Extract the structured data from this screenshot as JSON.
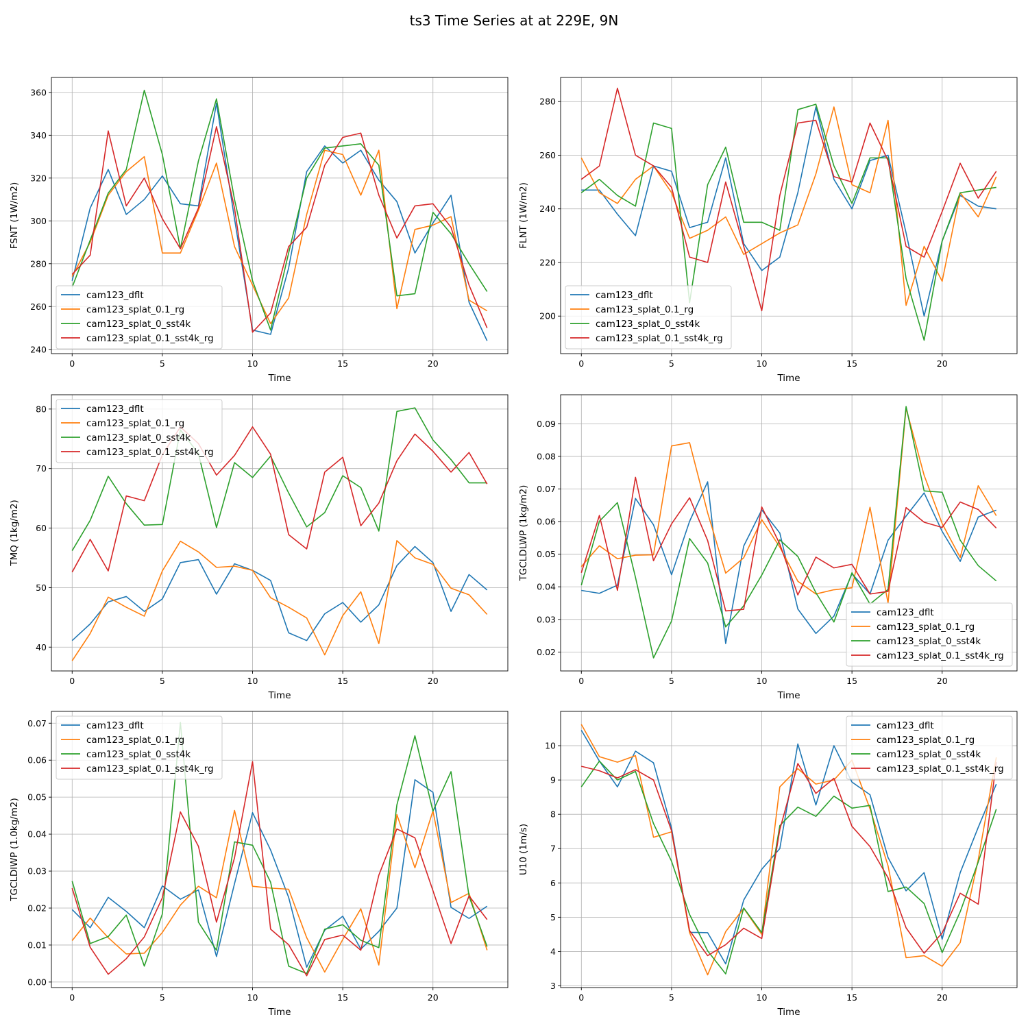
{
  "figure": {
    "title": "ts3 Time Series at at 229E, 9N"
  },
  "series_colors": [
    "#1f77b4",
    "#ff7f0e",
    "#2ca02c",
    "#d62728"
  ],
  "chart_data": [
    {
      "type": "line",
      "title": "",
      "xlabel": "Time",
      "ylabel": "FSNT (1W/m2)",
      "xlim": [
        -1.15,
        24.15
      ],
      "ylim": [
        238,
        367
      ],
      "xticks": [
        0,
        5,
        10,
        15,
        20
      ],
      "xtick_labels": [
        "0",
        "5",
        "10",
        "15",
        "20"
      ],
      "yticks": [
        240,
        260,
        280,
        300,
        320,
        340,
        360
      ],
      "ytick_labels": [
        "240",
        "260",
        "280",
        "300",
        "320",
        "340",
        "360"
      ],
      "legend_position": "lower-left",
      "x": [
        0,
        1,
        2,
        3,
        4,
        5,
        6,
        7,
        8,
        9,
        10,
        11,
        12,
        13,
        14,
        15,
        16,
        17,
        18,
        19,
        20,
        21,
        22,
        23
      ],
      "series": [
        {
          "name": "cam123_dflt",
          "values": [
            272,
            306,
            324,
            303,
            310,
            321,
            308,
            307,
            355,
            301,
            249,
            247,
            278,
            323,
            335,
            327,
            333,
            319,
            309,
            285,
            299,
            312,
            262,
            244
          ]
        },
        {
          "name": "cam123_splat_0.1_rg",
          "values": [
            274,
            290,
            312,
            323,
            330,
            285,
            285,
            305,
            327,
            288,
            270,
            252,
            264,
            303,
            333,
            331,
            312,
            333,
            259,
            296,
            298,
            302,
            263,
            258
          ]
        },
        {
          "name": "cam123_splat_0_sst4k",
          "values": [
            269,
            291,
            313,
            324,
            361,
            331,
            287,
            328,
            357,
            310,
            272,
            249,
            285,
            320,
            334,
            335,
            336,
            326,
            265,
            266,
            304,
            294,
            280,
            267
          ]
        },
        {
          "name": "cam123_splat_0.1_sst4k_rg",
          "values": [
            275,
            284,
            342,
            307,
            320,
            301,
            287,
            306,
            344,
            306,
            248,
            257,
            288,
            297,
            326,
            339,
            341,
            312,
            292,
            307,
            308,
            297,
            270,
            250
          ]
        }
      ]
    },
    {
      "type": "line",
      "title": "",
      "xlabel": "Time",
      "ylabel": "FLNT (1W/m2)",
      "xlim": [
        -1.15,
        24.15
      ],
      "ylim": [
        186,
        289
      ],
      "xticks": [
        0,
        5,
        10,
        15,
        20
      ],
      "xtick_labels": [
        "0",
        "5",
        "10",
        "15",
        "20"
      ],
      "yticks": [
        200,
        220,
        240,
        260,
        280
      ],
      "ytick_labels": [
        "200",
        "220",
        "240",
        "260",
        "280"
      ],
      "legend_position": "lower-left",
      "x": [
        0,
        1,
        2,
        3,
        4,
        5,
        6,
        7,
        8,
        9,
        10,
        11,
        12,
        13,
        14,
        15,
        16,
        17,
        18,
        19,
        20,
        21,
        22,
        23
      ],
      "series": [
        {
          "name": "cam123_dflt",
          "values": [
            247,
            247,
            238,
            230,
            256,
            254,
            233,
            235,
            259,
            227,
            217,
            222,
            246,
            278,
            251,
            240,
            258,
            260,
            231,
            200,
            228,
            245,
            241,
            240
          ]
        },
        {
          "name": "cam123_splat_0.1_rg",
          "values": [
            259,
            246,
            242,
            251,
            256,
            246,
            229,
            232,
            237,
            223,
            227,
            231,
            234,
            253,
            278,
            249,
            246,
            273,
            204,
            226,
            213,
            246,
            237,
            252
          ]
        },
        {
          "name": "cam123_splat_0_sst4k",
          "values": [
            246,
            251,
            245,
            241,
            272,
            270,
            205,
            249,
            263,
            235,
            235,
            232,
            277,
            279,
            256,
            242,
            259,
            259,
            214,
            191,
            228,
            246,
            247,
            248
          ]
        },
        {
          "name": "cam123_splat_0.1_sst4k_rg",
          "values": [
            251,
            256,
            285,
            260,
            256,
            248,
            222,
            220,
            250,
            226,
            202,
            245,
            272,
            273,
            252,
            250,
            272,
            258,
            226,
            222,
            239,
            257,
            244,
            254
          ]
        }
      ]
    },
    {
      "type": "line",
      "title": "",
      "xlabel": "Time",
      "ylabel": "TMQ (1kg/m2)",
      "xlim": [
        -1.15,
        24.15
      ],
      "ylim": [
        36,
        82.4
      ],
      "xticks": [
        0,
        5,
        10,
        15,
        20
      ],
      "xtick_labels": [
        "0",
        "5",
        "10",
        "15",
        "20"
      ],
      "yticks": [
        40,
        50,
        60,
        70,
        80
      ],
      "ytick_labels": [
        "40",
        "50",
        "60",
        "70",
        "80"
      ],
      "legend_position": "upper-left",
      "x": [
        0,
        1,
        2,
        3,
        4,
        5,
        6,
        7,
        8,
        9,
        10,
        11,
        12,
        13,
        14,
        15,
        16,
        17,
        18,
        19,
        20,
        21,
        22,
        23
      ],
      "series": [
        {
          "name": "cam123_dflt",
          "values": [
            41.1,
            43.9,
            47.6,
            48.5,
            46.0,
            48.1,
            54.2,
            54.7,
            48.9,
            54.0,
            52.9,
            51.2,
            42.4,
            41.1,
            45.6,
            47.5,
            44.2,
            47.1,
            53.7,
            56.9,
            54.2,
            46.0,
            52.2,
            49.6
          ]
        },
        {
          "name": "cam123_splat_0.1_rg",
          "values": [
            37.7,
            42.3,
            48.4,
            46.7,
            45.2,
            52.8,
            57.8,
            56.0,
            53.4,
            53.6,
            52.9,
            48.3,
            46.7,
            44.9,
            38.7,
            45.3,
            49.3,
            40.6,
            57.9,
            55.0,
            53.9,
            49.9,
            48.8,
            45.5
          ]
        },
        {
          "name": "cam123_splat_0_sst4k",
          "values": [
            56.2,
            61.3,
            68.7,
            64.1,
            60.5,
            60.6,
            76.5,
            72.5,
            60.1,
            71.0,
            68.5,
            72.1,
            65.9,
            60.2,
            62.6,
            68.8,
            66.8,
            59.5,
            79.6,
            80.2,
            74.8,
            71.5,
            67.6,
            67.6
          ]
        },
        {
          "name": "cam123_splat_0.1_sst4k_rg",
          "values": [
            52.6,
            58.1,
            52.8,
            65.4,
            64.6,
            72.3,
            77.0,
            74.2,
            68.9,
            72.2,
            77.0,
            72.4,
            58.9,
            56.5,
            69.4,
            71.9,
            60.4,
            64.2,
            71.3,
            75.8,
            72.9,
            69.4,
            72.7,
            67.4
          ]
        }
      ]
    },
    {
      "type": "line",
      "title": "",
      "xlabel": "Time",
      "ylabel": "TGCLDLWP (1kg/m2)",
      "xlim": [
        -1.15,
        24.15
      ],
      "ylim": [
        0.0142,
        0.0989
      ],
      "xticks": [
        0,
        5,
        10,
        15,
        20
      ],
      "xtick_labels": [
        "0",
        "5",
        "10",
        "15",
        "20"
      ],
      "yticks": [
        0.02,
        0.03,
        0.04,
        0.05,
        0.06,
        0.07,
        0.08,
        0.09
      ],
      "ytick_labels": [
        "0.02",
        "0.03",
        "0.04",
        "0.05",
        "0.06",
        "0.07",
        "0.08",
        "0.09"
      ],
      "legend_position": "lower-right",
      "x": [
        0,
        1,
        2,
        3,
        4,
        5,
        6,
        7,
        8,
        9,
        10,
        11,
        12,
        13,
        14,
        15,
        16,
        17,
        18,
        19,
        20,
        21,
        22,
        23
      ],
      "series": [
        {
          "name": "cam123_dflt",
          "values": [
            0.0389,
            0.038,
            0.0405,
            0.0671,
            0.059,
            0.0437,
            0.0601,
            0.0722,
            0.0226,
            0.0525,
            0.0636,
            0.0565,
            0.0332,
            0.0257,
            0.031,
            0.044,
            0.0378,
            0.0543,
            0.0617,
            0.0688,
            0.057,
            0.0478,
            0.0614,
            0.0635
          ]
        },
        {
          "name": "cam123_splat_0.1_rg",
          "values": [
            0.0462,
            0.0526,
            0.0486,
            0.0497,
            0.0498,
            0.0832,
            0.0842,
            0.0627,
            0.0442,
            0.0489,
            0.0606,
            0.0522,
            0.0417,
            0.0378,
            0.0391,
            0.0397,
            0.0644,
            0.035,
            0.0948,
            0.0742,
            0.0594,
            0.049,
            0.071,
            0.0618
          ]
        },
        {
          "name": "cam123_splat_0_sst4k",
          "values": [
            0.0405,
            0.0601,
            0.0658,
            0.0429,
            0.0182,
            0.0295,
            0.0548,
            0.0473,
            0.0277,
            0.0342,
            0.0436,
            0.0544,
            0.0493,
            0.0382,
            0.0292,
            0.0443,
            0.0347,
            0.0392,
            0.0953,
            0.0694,
            0.069,
            0.0543,
            0.0465,
            0.0418
          ]
        },
        {
          "name": "cam123_splat_0.1_sst4k_rg",
          "values": [
            0.0443,
            0.0619,
            0.0389,
            0.0736,
            0.048,
            0.0593,
            0.0673,
            0.0542,
            0.0326,
            0.0331,
            0.0645,
            0.0531,
            0.0375,
            0.0491,
            0.0458,
            0.0469,
            0.0378,
            0.0386,
            0.0643,
            0.0598,
            0.0582,
            0.066,
            0.0637,
            0.058
          ]
        }
      ]
    },
    {
      "type": "line",
      "title": "",
      "xlabel": "Time",
      "ylabel": "TGCLDIWP (1.0kg/m2)",
      "xlim": [
        -1.15,
        24.15
      ],
      "ylim": [
        -0.0015,
        0.0732
      ],
      "xticks": [
        0,
        5,
        10,
        15,
        20
      ],
      "xtick_labels": [
        "0",
        "5",
        "10",
        "15",
        "20"
      ],
      "yticks": [
        0.0,
        0.01,
        0.02,
        0.03,
        0.04,
        0.05,
        0.06,
        0.07
      ],
      "ytick_labels": [
        "0.00",
        "0.01",
        "0.02",
        "0.03",
        "0.04",
        "0.05",
        "0.06",
        "0.07"
      ],
      "legend_position": "upper-left",
      "x": [
        0,
        1,
        2,
        3,
        4,
        5,
        6,
        7,
        8,
        9,
        10,
        11,
        12,
        13,
        14,
        15,
        16,
        17,
        18,
        19,
        20,
        21,
        22,
        23
      ],
      "series": [
        {
          "name": "cam123_dflt",
          "values": [
            0.0196,
            0.0147,
            0.0229,
            0.0191,
            0.0147,
            0.026,
            0.0224,
            0.0249,
            0.0069,
            0.0266,
            0.0458,
            0.0357,
            0.0229,
            0.004,
            0.014,
            0.0178,
            0.0089,
            0.0137,
            0.02,
            0.0547,
            0.0513,
            0.0202,
            0.0172,
            0.0205
          ]
        },
        {
          "name": "cam123_splat_0.1_rg",
          "values": [
            0.0112,
            0.0173,
            0.012,
            0.0076,
            0.0078,
            0.0134,
            0.0208,
            0.0259,
            0.0228,
            0.0464,
            0.0259,
            0.0254,
            0.0251,
            0.012,
            0.0027,
            0.0115,
            0.0198,
            0.0046,
            0.0453,
            0.0309,
            0.0463,
            0.0215,
            0.024,
            0.0086
          ]
        },
        {
          "name": "cam123_splat_0_sst4k",
          "values": [
            0.0273,
            0.0104,
            0.0123,
            0.0181,
            0.0043,
            0.0184,
            0.0702,
            0.0162,
            0.0086,
            0.0379,
            0.037,
            0.027,
            0.0043,
            0.0023,
            0.0143,
            0.0155,
            0.0113,
            0.0093,
            0.0479,
            0.0666,
            0.0462,
            0.0569,
            0.0232,
            0.0096
          ]
        },
        {
          "name": "cam123_splat_0.1_sst4k_rg",
          "values": [
            0.0254,
            0.0094,
            0.0021,
            0.0063,
            0.0122,
            0.0228,
            0.046,
            0.0367,
            0.0162,
            0.0336,
            0.0596,
            0.0143,
            0.0101,
            0.0017,
            0.0115,
            0.0127,
            0.0086,
            0.0289,
            0.0414,
            0.039,
            0.0247,
            0.0104,
            0.0233,
            0.0169
          ]
        }
      ]
    },
    {
      "type": "line",
      "title": "",
      "xlabel": "Time",
      "ylabel": "U10 (1m/s)",
      "xlim": [
        -1.15,
        24.15
      ],
      "ylim": [
        2.95,
        11.0
      ],
      "xticks": [
        0,
        5,
        10,
        15,
        20
      ],
      "xtick_labels": [
        "0",
        "5",
        "10",
        "15",
        "20"
      ],
      "yticks": [
        3,
        4,
        5,
        6,
        7,
        8,
        9,
        10
      ],
      "ytick_labels": [
        "3",
        "4",
        "5",
        "6",
        "7",
        "8",
        "9",
        "10"
      ],
      "legend_position": "upper-right",
      "x": [
        0,
        1,
        2,
        3,
        4,
        5,
        6,
        7,
        8,
        9,
        10,
        11,
        12,
        13,
        14,
        15,
        16,
        17,
        18,
        19,
        20,
        21,
        22,
        23
      ],
      "series": [
        {
          "name": "cam123_dflt",
          "values": [
            10.45,
            9.55,
            8.8,
            9.84,
            9.5,
            7.6,
            4.56,
            4.55,
            3.64,
            5.5,
            6.4,
            7.0,
            10.05,
            8.27,
            10.0,
            8.94,
            8.57,
            6.74,
            5.77,
            6.3,
            4.36,
            6.3,
            7.62,
            8.88
          ]
        },
        {
          "name": "cam123_splat_0.1_rg",
          "values": [
            10.62,
            9.68,
            9.52,
            9.71,
            7.33,
            7.49,
            4.55,
            3.32,
            4.58,
            5.26,
            4.5,
            8.8,
            9.33,
            8.88,
            9.0,
            9.58,
            8.16,
            6.5,
            3.82,
            3.88,
            3.57,
            4.26,
            6.68,
            9.66
          ]
        },
        {
          "name": "cam123_splat_0_sst4k",
          "values": [
            8.8,
            9.55,
            9.0,
            9.25,
            7.73,
            6.63,
            5.08,
            4.02,
            3.35,
            5.27,
            4.55,
            7.67,
            8.21,
            7.94,
            8.53,
            8.18,
            8.26,
            5.75,
            5.88,
            5.4,
            3.97,
            5.16,
            6.61,
            8.15
          ]
        },
        {
          "name": "cam123_splat_0.1_sst4k_rg",
          "values": [
            9.4,
            9.27,
            9.06,
            9.3,
            9.0,
            7.52,
            4.61,
            3.88,
            4.2,
            4.68,
            4.38,
            7.55,
            9.48,
            8.61,
            9.05,
            7.65,
            7.06,
            6.15,
            4.69,
            3.95,
            4.54,
            5.7,
            5.38,
            9.52
          ]
        }
      ]
    }
  ]
}
